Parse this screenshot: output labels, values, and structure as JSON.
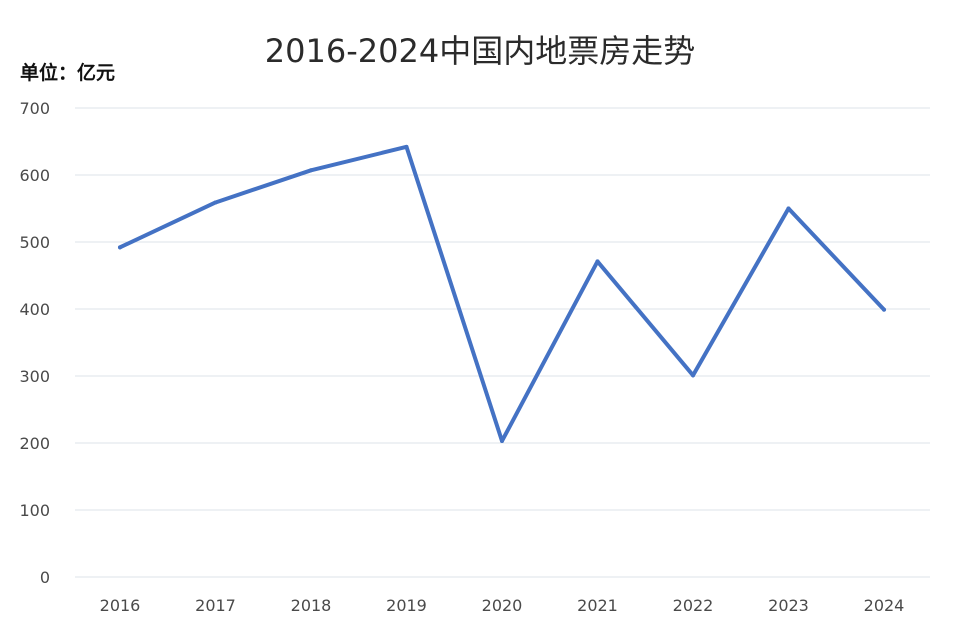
{
  "chart_data": {
    "type": "line",
    "title": "2016-2024中国内地票房走势",
    "unit_label": "单位：亿元",
    "xlabel": "",
    "ylabel": "",
    "categories": [
      "2016",
      "2017",
      "2018",
      "2019",
      "2020",
      "2021",
      "2022",
      "2023",
      "2024"
    ],
    "series": [
      {
        "values": [
          492,
          559,
          607,
          642,
          203,
          471,
          301,
          550,
          399
        ],
        "color": "#4472c4"
      }
    ],
    "ylim": [
      0,
      700
    ],
    "yticks": [
      "0",
      "100",
      "200",
      "300",
      "400",
      "500",
      "600",
      "700"
    ],
    "grid": true,
    "legend": "none"
  }
}
